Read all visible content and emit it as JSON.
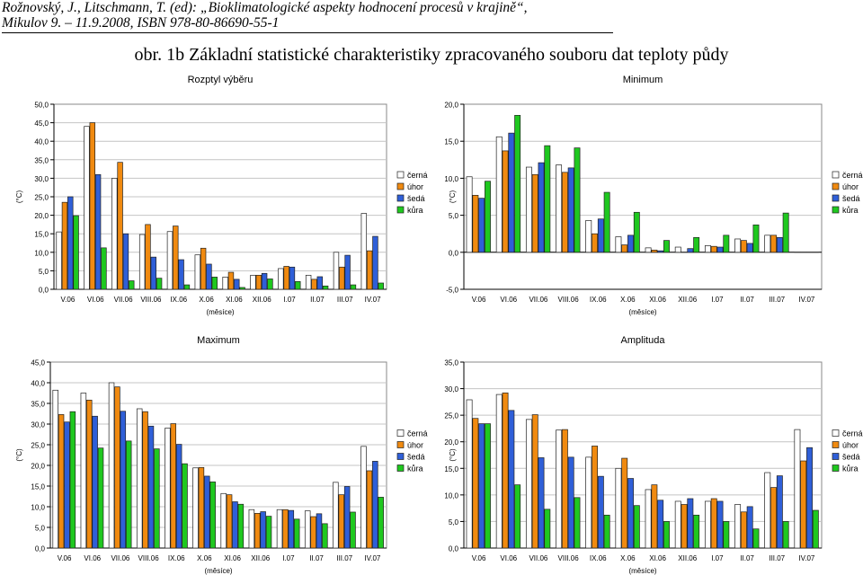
{
  "header": {
    "line1": "Rožnovský, J., Litschmann, T. (ed): „Bioklimatologické aspekty hodnocení procesů v krajině“,",
    "line2": "Mikulov 9. – 11.9.2008, ISBN 978-80-86690-55-1"
  },
  "figure_title": "obr. 1b Základní statistické charakteristiky zpracovaného souboru dat teploty půdy",
  "colors": {
    "černá": "#ffffff",
    "úhor": "#f08a10",
    "šedá": "#2f5fd8",
    "kůra": "#1fc81f"
  },
  "chart_data": [
    {
      "type": "bar",
      "title": "Rozptyl výběru",
      "xlabel": "(měsíce)",
      "ylabel": "(°C)",
      "ylim": [
        0,
        50
      ],
      "yticks": [
        "0,0",
        "5,0",
        "10,0",
        "15,0",
        "20,0",
        "25,0",
        "30,0",
        "35,0",
        "40,0",
        "45,0",
        "50,0"
      ],
      "legend_position": "right",
      "categories": [
        "V.06",
        "VI.06",
        "VII.06",
        "VIII.06",
        "IX.06",
        "X.06",
        "XI.06",
        "XII.06",
        "I.07",
        "II.07",
        "III.07",
        "IV.07"
      ],
      "series": [
        {
          "name": "černá",
          "values": [
            15.5,
            44.0,
            30.0,
            14.8,
            15.6,
            9.3,
            3.3,
            3.8,
            5.6,
            3.8,
            10.0,
            20.5
          ]
        },
        {
          "name": "úhor",
          "values": [
            23.5,
            45.0,
            34.3,
            17.5,
            17.1,
            11.1,
            4.6,
            3.8,
            6.2,
            2.7,
            6.0,
            10.4
          ]
        },
        {
          "name": "šedá",
          "values": [
            25.0,
            31.0,
            15.0,
            8.7,
            8.0,
            6.8,
            2.7,
            4.3,
            6.0,
            3.4,
            9.2,
            14.3
          ]
        },
        {
          "name": "kůra",
          "values": [
            19.9,
            11.2,
            2.3,
            3.0,
            1.2,
            3.3,
            0.5,
            2.8,
            2.1,
            0.9,
            1.2,
            1.7
          ]
        }
      ]
    },
    {
      "type": "bar",
      "title": "Minimum",
      "xlabel": "(měsíce)",
      "ylabel": "(°C)",
      "ylim": [
        -5,
        20
      ],
      "yticks": [
        "-5,0",
        "0,0",
        "5,0",
        "10,0",
        "15,0",
        "20,0"
      ],
      "legend_position": "right",
      "categories": [
        "V.06",
        "VI.06",
        "VII.06",
        "VIII.06",
        "IX.06",
        "X.06",
        "XI.06",
        "XII.06",
        "I.07",
        "II.07",
        "III.07",
        "IV.07"
      ],
      "series": [
        {
          "name": "černá",
          "values": [
            10.2,
            15.6,
            11.5,
            11.8,
            4.3,
            2.1,
            0.6,
            0.7,
            0.9,
            1.8,
            2.3,
            0.0
          ]
        },
        {
          "name": "úhor",
          "values": [
            7.7,
            13.7,
            10.5,
            10.8,
            2.5,
            1.0,
            0.3,
            0.0,
            0.8,
            1.6,
            2.3,
            0.0
          ]
        },
        {
          "name": "šedá",
          "values": [
            7.3,
            16.1,
            12.1,
            11.4,
            4.5,
            2.3,
            0.2,
            0.5,
            0.7,
            1.2,
            2.0,
            0.0
          ]
        },
        {
          "name": "kůra",
          "values": [
            9.6,
            18.5,
            14.4,
            14.1,
            8.1,
            5.4,
            1.6,
            2.0,
            2.3,
            3.7,
            5.3,
            0.0
          ]
        }
      ]
    },
    {
      "type": "bar",
      "title": "Maximum",
      "xlabel": "(měsíce)",
      "ylabel": "(°C)",
      "ylim": [
        0,
        45
      ],
      "yticks": [
        "0,0",
        "5,0",
        "10,0",
        "15,0",
        "20,0",
        "25,0",
        "30,0",
        "35,0",
        "40,0",
        "45,0"
      ],
      "legend_position": "right",
      "categories": [
        "V.06",
        "VI.06",
        "VII.06",
        "VIII.06",
        "IX.06",
        "X.06",
        "XI.06",
        "XII.06",
        "I.07",
        "II.07",
        "III.07",
        "IV.07"
      ],
      "series": [
        {
          "name": "černá",
          "values": [
            38.2,
            37.5,
            40.0,
            33.7,
            29.0,
            19.4,
            13.2,
            9.3,
            9.3,
            9.0,
            15.9,
            24.6
          ]
        },
        {
          "name": "úhor",
          "values": [
            32.3,
            35.8,
            39.0,
            33.0,
            30.1,
            19.5,
            12.9,
            8.4,
            9.3,
            7.6,
            12.9,
            18.7
          ]
        },
        {
          "name": "šedá",
          "values": [
            30.5,
            31.9,
            33.1,
            29.5,
            25.1,
            17.4,
            11.2,
            8.8,
            9.1,
            8.3,
            14.9,
            21.0
          ]
        },
        {
          "name": "kůra",
          "values": [
            33.0,
            24.2,
            25.9,
            24.0,
            20.4,
            16.0,
            10.6,
            7.7,
            7.0,
            5.9,
            8.7,
            12.3
          ]
        }
      ]
    },
    {
      "type": "bar",
      "title": "Amplituda",
      "xlabel": "(měsíce)",
      "ylabel": "(°C)",
      "ylim": [
        0,
        35
      ],
      "yticks": [
        "0,0",
        "5,0",
        "10,0",
        "15,0",
        "20,0",
        "25,0",
        "30,0",
        "35,0"
      ],
      "legend_position": "right",
      "categories": [
        "V.06",
        "VI.06",
        "VII.06",
        "VIII.06",
        "IX.06",
        "X.06",
        "XI.06",
        "XII.06",
        "I.07",
        "II.07",
        "III.07",
        "IV.07"
      ],
      "series": [
        {
          "name": "černá",
          "values": [
            27.9,
            28.9,
            24.2,
            22.2,
            17.1,
            15.0,
            11.0,
            8.8,
            8.8,
            8.2,
            14.2,
            22.3
          ]
        },
        {
          "name": "úhor",
          "values": [
            24.4,
            29.2,
            25.1,
            22.3,
            19.2,
            16.9,
            11.9,
            8.2,
            9.3,
            6.8,
            11.4,
            16.4
          ]
        },
        {
          "name": "šedá",
          "values": [
            23.4,
            25.9,
            17.0,
            17.1,
            13.5,
            13.1,
            9.0,
            9.3,
            8.8,
            7.8,
            13.6,
            18.9
          ]
        },
        {
          "name": "kůra",
          "values": [
            23.4,
            11.9,
            7.3,
            9.5,
            6.2,
            8.0,
            5.0,
            6.2,
            5.0,
            3.6,
            5.0,
            7.1
          ]
        }
      ]
    }
  ]
}
